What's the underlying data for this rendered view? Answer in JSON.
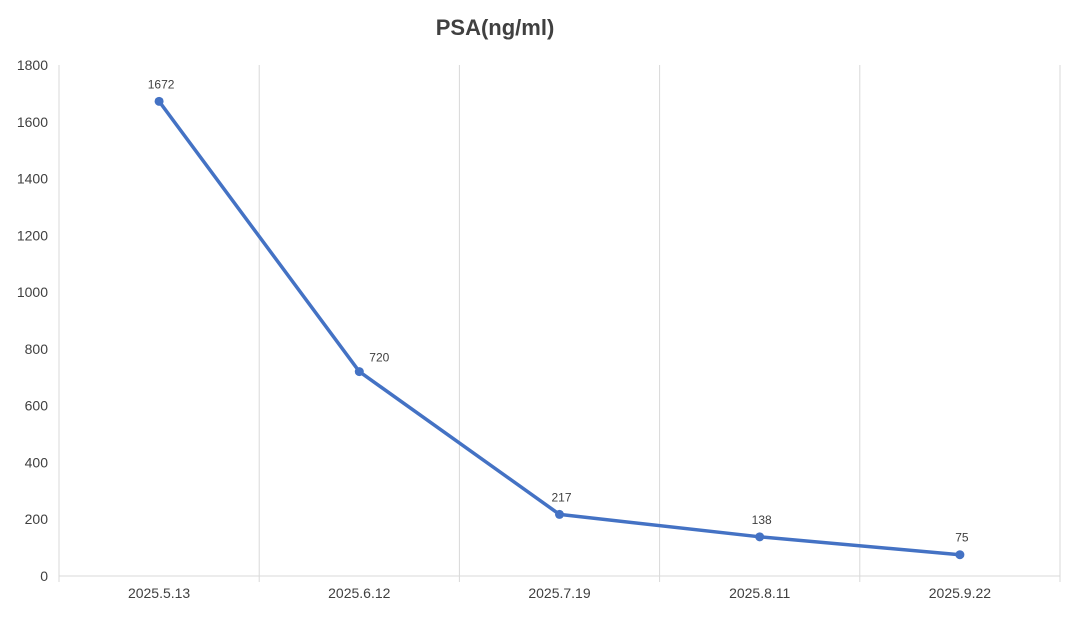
{
  "chart_data": {
    "type": "line",
    "title": "PSA(ng/ml)",
    "xlabel": "",
    "ylabel": "",
    "categories": [
      "2025.5.13",
      "2025.6.12",
      "2025.7.19",
      "2025.8.11",
      "2025.9.22"
    ],
    "series": [
      {
        "values": [
          1672,
          720,
          217,
          138,
          75
        ],
        "color": "#4472c4"
      }
    ],
    "data_labels": [
      "1672",
      "720",
      "217",
      "138",
      "75"
    ],
    "ylim": [
      0,
      1800
    ],
    "yticks": [
      0,
      200,
      400,
      600,
      800,
      1000,
      1200,
      1400,
      1600,
      1800
    ],
    "ytick_labels": [
      "0",
      "200",
      "400",
      "600",
      "800",
      "1000",
      "1200",
      "1400",
      "1600",
      "1800"
    ],
    "grid": "vertical",
    "legend": "none"
  }
}
